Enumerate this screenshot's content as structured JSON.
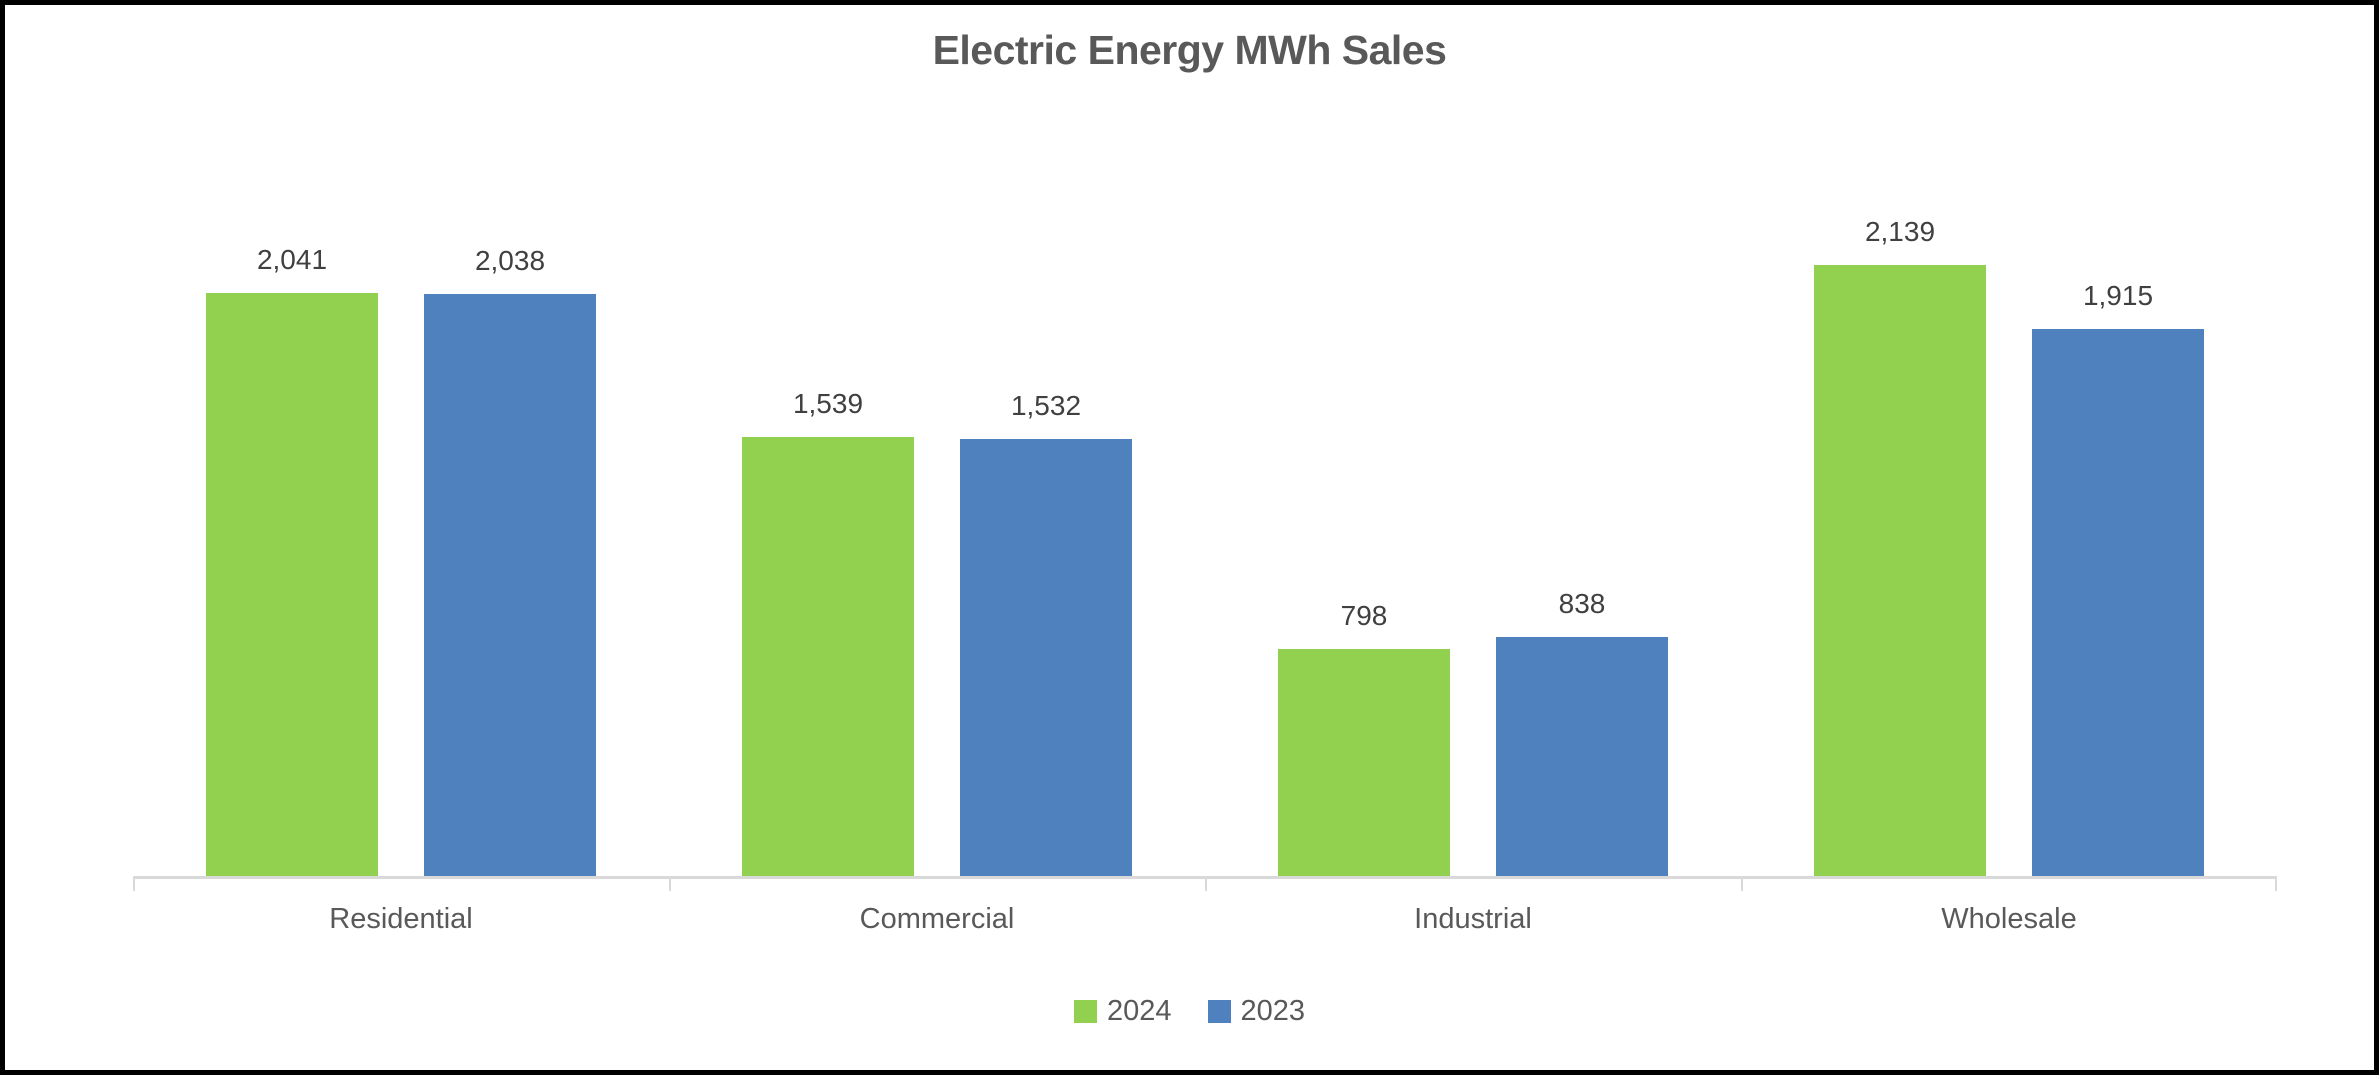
{
  "chart_data": {
    "type": "bar",
    "title": "Electric Energy MWh Sales",
    "categories": [
      "Residential",
      "Commercial",
      "Industrial",
      "Wholesale"
    ],
    "series": [
      {
        "name": "2024",
        "color": "#92D050",
        "values": [
          2041,
          1539,
          798,
          2139
        ],
        "labels": [
          "2,041",
          "1,539",
          "798",
          "2,139"
        ]
      },
      {
        "name": "2023",
        "color": "#4E81BD",
        "values": [
          2038,
          1532,
          838,
          1915
        ],
        "labels": [
          "2,038",
          "1,532",
          "838",
          "1,915"
        ]
      }
    ],
    "ylim": [
      0,
      2250
    ],
    "grid": false,
    "legend_position": "bottom",
    "colors": {
      "title_text": "#595959",
      "value_label_text": "#404040",
      "category_label_text": "#595959",
      "axis_line": "#D9D9D9",
      "background": "#FFFFFF",
      "frame_border": "#000000"
    }
  }
}
